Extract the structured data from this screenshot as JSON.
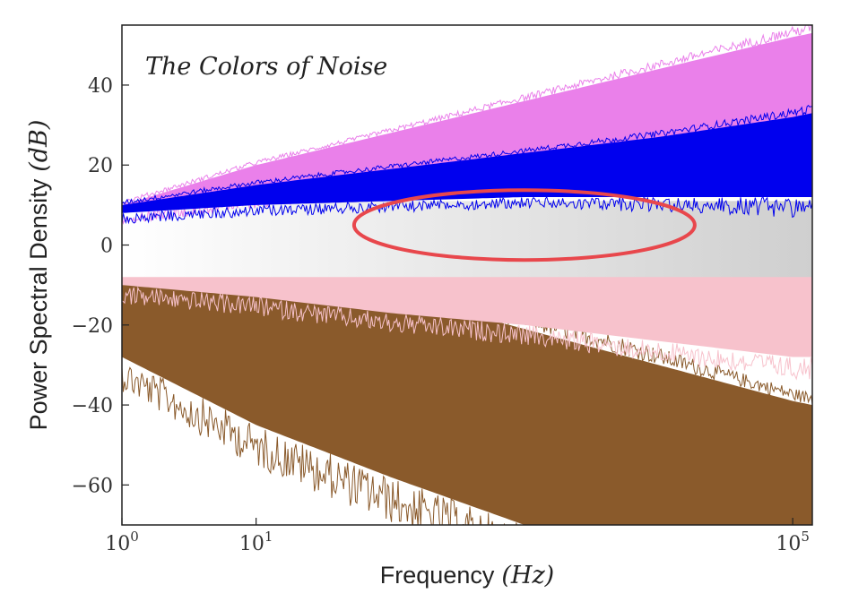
{
  "chart_data": {
    "type": "area",
    "title": "The Colors of Noise",
    "xlabel": "Frequency",
    "xlabel_unit": "(Hz)",
    "ylabel": "Power Spectral Density",
    "ylabel_unit": "(dB)",
    "x_scale": "log",
    "xlim": [
      1,
      140000
    ],
    "ylim": [
      -70,
      55
    ],
    "x_ticks": [
      {
        "value": 1,
        "base": "10",
        "exp": "0"
      },
      {
        "value": 10,
        "base": "10",
        "exp": "1"
      },
      {
        "value": 100000,
        "base": "10",
        "exp": "5"
      }
    ],
    "y_ticks": [
      {
        "value": 40,
        "label": "40"
      },
      {
        "value": 20,
        "label": "20"
      },
      {
        "value": 0,
        "label": "0"
      },
      {
        "value": -20,
        "label": "−20"
      },
      {
        "value": -40,
        "label": "−40"
      },
      {
        "value": -60,
        "label": "−60"
      }
    ],
    "grid": false,
    "legend": "none",
    "series": [
      {
        "color": "#8a5a2b",
        "x": [
          1,
          10,
          100,
          1000,
          10000,
          100000,
          140000
        ],
        "values_top": [
          6,
          -3,
          -12,
          -21,
          -30,
          -39,
          -40
        ],
        "values_bottom": [
          -28,
          -45,
          -58,
          -70,
          -70,
          -70,
          -70
        ]
      },
      {
        "color": "#f7c2cc",
        "x": [
          1,
          10,
          100,
          1000,
          10000,
          100000,
          140000
        ],
        "values_top": [
          9,
          6,
          3,
          0,
          -3,
          -6,
          -6
        ],
        "values_bottom": [
          -10,
          -13,
          -17,
          -20,
          -24,
          -28,
          -28
        ]
      },
      {
        "color": "#dcdcdc",
        "x": [
          1,
          10,
          100,
          1000,
          10000,
          100000,
          140000
        ],
        "values_top": [
          11,
          11,
          11,
          11,
          11,
          11,
          11
        ],
        "values_bottom": [
          -8,
          -8,
          -8,
          -8,
          -8,
          -8,
          -8
        ]
      },
      {
        "color": "#ea80ea",
        "x": [
          1,
          10,
          100,
          1000,
          10000,
          100000,
          140000
        ],
        "values_top": [
          10,
          20,
          28,
          36,
          44,
          52,
          53
        ],
        "values_bottom": [
          8,
          12,
          16,
          20,
          24,
          28,
          28
        ]
      },
      {
        "color": "#0000ee",
        "x": [
          1,
          10,
          100,
          1000,
          10000,
          100000,
          140000
        ],
        "values_top": [
          10,
          15,
          19,
          23,
          27,
          32,
          33
        ],
        "values_bottom": [
          8,
          10,
          11,
          12,
          12,
          12,
          12
        ]
      }
    ],
    "annotation_ellipse": {
      "center_x": 1000,
      "center_y": 5,
      "color": "#e8474c"
    }
  }
}
